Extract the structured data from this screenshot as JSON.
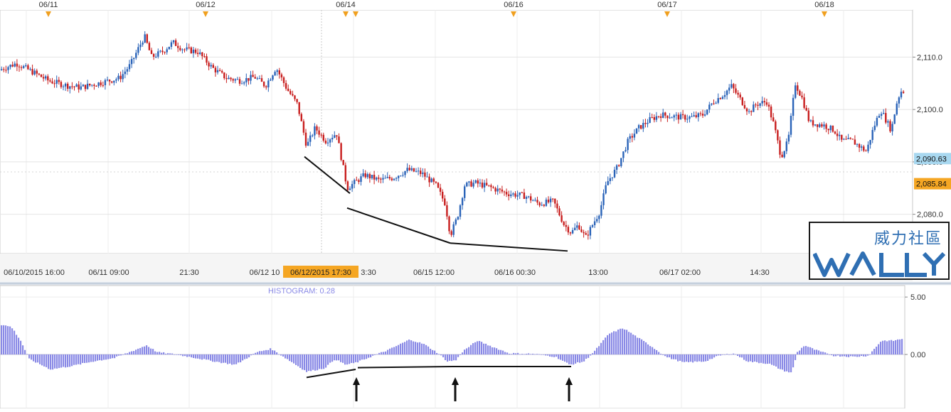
{
  "chart_data": [
    {
      "type": "candlestick",
      "date_markers": [
        "06/11",
        "06/12",
        "06/14",
        "06/16",
        "06/17",
        "06/18"
      ],
      "time_axis_labels": [
        "06/10/2015 16:00",
        "06/11 09:00",
        "21:30",
        "06/12 10",
        "3:30",
        "06/15 12:00",
        "06/16 00:30",
        "13:00",
        "06/17 02:00",
        "14:30"
      ],
      "crosshair_time": "06/12/2015 17:30",
      "y_ticks": [
        2080,
        2090,
        2100,
        2110
      ],
      "y_tick_labels": [
        "2,080.0",
        "2,090.0",
        "2,100.0",
        "2,110.0"
      ],
      "ylim": [
        2072.5,
        2119.0
      ],
      "price_tags": [
        {
          "label": "2,090.63",
          "value": 2090.63,
          "color": "#a8d8f0"
        },
        {
          "label": "2,085.84",
          "value": 2085.84,
          "color": "#f5a623"
        }
      ],
      "up_color": "#2a63b8",
      "down_color": "#c81e1e",
      "close_path": [
        [
          0,
          2107.5
        ],
        [
          25,
          2108.8
        ],
        [
          50,
          2107.0
        ],
        [
          70,
          2105.5
        ],
        [
          95,
          2104.6
        ],
        [
          115,
          2104.2
        ],
        [
          140,
          2105.0
        ],
        [
          170,
          2106.0
        ],
        [
          185,
          2108.5
        ],
        [
          205,
          2114.0
        ],
        [
          215,
          2110.0
        ],
        [
          230,
          2111.0
        ],
        [
          245,
          2112.8
        ],
        [
          260,
          2111.5
        ],
        [
          280,
          2111.0
        ],
        [
          300,
          2108.0
        ],
        [
          320,
          2106.0
        ],
        [
          340,
          2105.5
        ],
        [
          360,
          2106.2
        ],
        [
          375,
          2104.5
        ],
        [
          390,
          2108.0
        ],
        [
          405,
          2104.0
        ],
        [
          420,
          2101.0
        ],
        [
          433,
          2093.0
        ],
        [
          445,
          2096.5
        ],
        [
          460,
          2094.0
        ],
        [
          475,
          2095.5
        ],
        [
          490,
          2085.0
        ],
        [
          500,
          2086.0
        ],
        [
          515,
          2087.5
        ],
        [
          535,
          2086.5
        ],
        [
          555,
          2087.0
        ],
        [
          575,
          2088.5
        ],
        [
          595,
          2087.8
        ],
        [
          615,
          2085.5
        ],
        [
          628,
          2082.0
        ],
        [
          635,
          2076.0
        ],
        [
          645,
          2079.5
        ],
        [
          655,
          2085.5
        ],
        [
          670,
          2086.0
        ],
        [
          690,
          2085.2
        ],
        [
          715,
          2084.0
        ],
        [
          740,
          2083.5
        ],
        [
          760,
          2082.0
        ],
        [
          780,
          2082.5
        ],
        [
          795,
          2078.0
        ],
        [
          805,
          2076.5
        ],
        [
          815,
          2078.0
        ],
        [
          825,
          2075.5
        ],
        [
          835,
          2078.0
        ],
        [
          845,
          2080.5
        ],
        [
          855,
          2086.0
        ],
        [
          870,
          2089.0
        ],
        [
          885,
          2094.0
        ],
        [
          900,
          2096.5
        ],
        [
          915,
          2098.0
        ],
        [
          930,
          2099.0
        ],
        [
          960,
          2098.5
        ],
        [
          975,
          2098.5
        ],
        [
          990,
          2099.0
        ],
        [
          1005,
          2101.5
        ],
        [
          1020,
          2103.0
        ],
        [
          1030,
          2104.5
        ],
        [
          1040,
          2102.5
        ],
        [
          1055,
          2099.5
        ],
        [
          1065,
          2101.0
        ],
        [
          1080,
          2101.5
        ],
        [
          1090,
          2097.0
        ],
        [
          1100,
          2091.0
        ],
        [
          1110,
          2094.0
        ],
        [
          1120,
          2105.0
        ],
        [
          1130,
          2102.0
        ],
        [
          1140,
          2097.5
        ],
        [
          1160,
          2097.0
        ],
        [
          1175,
          2096.0
        ],
        [
          1185,
          2094.0
        ],
        [
          1200,
          2094.0
        ],
        [
          1210,
          2093.0
        ],
        [
          1220,
          2092.0
        ],
        [
          1230,
          2096.5
        ],
        [
          1240,
          2100.0
        ],
        [
          1255,
          2096.0
        ],
        [
          1262,
          2101.0
        ],
        [
          1268,
          2103.5
        ]
      ],
      "trendlines": [
        {
          "start": [
            428,
            2091.0
          ],
          "end": [
            492,
            2084.0
          ]
        },
        {
          "start": [
            488,
            2081.2
          ],
          "end": [
            633,
            2074.5
          ]
        },
        {
          "start": [
            633,
            2074.5
          ],
          "end": [
            798,
            2073.0
          ]
        }
      ]
    },
    {
      "type": "histogram",
      "indicator_label": "HISTOGRAM: 0.28",
      "y_ticks": [
        0,
        5
      ],
      "y_tick_labels": [
        "0.00",
        "5.00"
      ],
      "ylim": [
        -4.7,
        6.0
      ],
      "bar_color": "#8a8ae6",
      "profile": [
        [
          0,
          2.6
        ],
        [
          15,
          2.4
        ],
        [
          28,
          1.2
        ],
        [
          40,
          -0.4
        ],
        [
          70,
          -1.3
        ],
        [
          100,
          -1.0
        ],
        [
          130,
          -0.6
        ],
        [
          160,
          -0.3
        ],
        [
          185,
          0.3
        ],
        [
          205,
          0.8
        ],
        [
          220,
          0.2
        ],
        [
          240,
          0.05
        ],
        [
          265,
          -0.2
        ],
        [
          300,
          -0.6
        ],
        [
          330,
          -0.9
        ],
        [
          360,
          0.2
        ],
        [
          380,
          0.5
        ],
        [
          400,
          -0.3
        ],
        [
          430,
          -1.5
        ],
        [
          455,
          -1.2
        ],
        [
          470,
          -0.4
        ],
        [
          485,
          -0.9
        ],
        [
          500,
          -0.7
        ],
        [
          520,
          -0.2
        ],
        [
          545,
          0.4
        ],
        [
          575,
          1.3
        ],
        [
          595,
          0.9
        ],
        [
          615,
          0.1
        ],
        [
          628,
          -0.6
        ],
        [
          640,
          -0.5
        ],
        [
          650,
          0.3
        ],
        [
          670,
          1.2
        ],
        [
          690,
          0.7
        ],
        [
          715,
          0.1
        ],
        [
          750,
          0.05
        ],
        [
          780,
          -0.2
        ],
        [
          800,
          -0.9
        ],
        [
          820,
          -0.6
        ],
        [
          835,
          0.3
        ],
        [
          855,
          1.8
        ],
        [
          875,
          2.3
        ],
        [
          895,
          1.5
        ],
        [
          915,
          0.7
        ],
        [
          935,
          -0.2
        ],
        [
          960,
          -0.7
        ],
        [
          990,
          -0.6
        ],
        [
          1010,
          -0.1
        ],
        [
          1030,
          0.1
        ],
        [
          1050,
          -0.6
        ],
        [
          1080,
          -0.8
        ],
        [
          1100,
          -1.4
        ],
        [
          1112,
          -1.6
        ],
        [
          1120,
          0.2
        ],
        [
          1130,
          0.8
        ],
        [
          1145,
          0.4
        ],
        [
          1170,
          -0.1
        ],
        [
          1200,
          -0.2
        ],
        [
          1220,
          -0.1
        ],
        [
          1238,
          1.2
        ],
        [
          1255,
          1.2
        ],
        [
          1270,
          1.4
        ]
      ],
      "trendlines": [
        {
          "start": [
            431,
            -2.0
          ],
          "end": [
            500,
            -1.3
          ]
        },
        {
          "start": [
            503,
            -1.15
          ],
          "end": [
            638,
            -1.05
          ]
        },
        {
          "start": [
            638,
            -1.05
          ],
          "end": [
            803,
            -1.05
          ]
        }
      ],
      "arrows_at_x": [
        501,
        640,
        800
      ]
    }
  ],
  "logo": {
    "chinese": "威力社區",
    "wordmark": "WALLY"
  }
}
